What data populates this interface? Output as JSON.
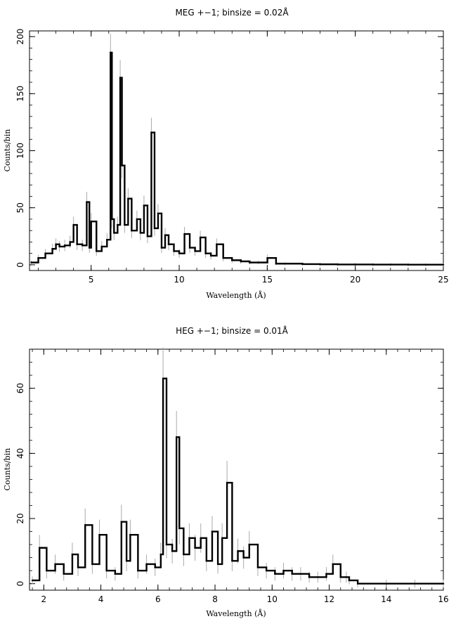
{
  "chart_data": [
    {
      "type": "line",
      "title": "MEG +−1; binsize = 0.02Å",
      "xlabel": "Wavelength (Å)",
      "ylabel": "Counts/bin",
      "xlim": [
        1.5,
        25
      ],
      "ylim": [
        -5,
        205
      ],
      "xticks": [
        5,
        10,
        15,
        20,
        25
      ],
      "yticks": [
        0,
        50,
        100,
        150,
        200
      ],
      "xtick_labels": [
        "5",
        "10",
        "15",
        "20",
        "25"
      ],
      "ytick_labels": [
        "0",
        "50",
        "100",
        "150",
        "200"
      ],
      "grid": false,
      "series": [
        {
          "x": [
            1.6,
            2.0,
            2.4,
            2.8,
            3.0,
            3.2,
            3.5,
            3.8,
            4.0,
            4.2,
            4.5,
            4.75,
            4.9,
            5.0,
            5.3,
            5.6,
            5.9,
            6.1,
            6.18,
            6.3,
            6.5,
            6.65,
            6.75,
            6.9,
            7.1,
            7.3,
            7.6,
            7.8,
            8.0,
            8.2,
            8.42,
            8.6,
            8.8,
            9.0,
            9.2,
            9.4,
            9.7,
            10.0,
            10.3,
            10.6,
            10.9,
            11.2,
            11.5,
            11.8,
            12.13,
            12.5,
            13.0,
            13.5,
            14.0,
            14.5,
            15.01,
            15.5,
            16.0,
            17.0,
            18.0,
            19.0,
            20.0,
            21.0,
            22.0,
            23.0,
            24.0,
            25.0
          ],
          "y": [
            2,
            6,
            10,
            14,
            18,
            16,
            17,
            20,
            35,
            18,
            17,
            55,
            15,
            38,
            12,
            16,
            22,
            186,
            40,
            28,
            35,
            164,
            87,
            35,
            58,
            30,
            40,
            28,
            52,
            25,
            116,
            32,
            45,
            15,
            26,
            18,
            12,
            10,
            27,
            15,
            12,
            24,
            10,
            8,
            18,
            6,
            4,
            3,
            2,
            2,
            6,
            1,
            1,
            0.6,
            0.4,
            0.3,
            0.3,
            0.2,
            0.2,
            0.1,
            0.1,
            0.1
          ]
        }
      ]
    },
    {
      "type": "line",
      "title": "HEG +−1; binsize = 0.01Å",
      "xlabel": "Wavelength (Å)",
      "ylabel": "Counts/bin",
      "xlim": [
        1.5,
        16
      ],
      "ylim": [
        -2,
        72
      ],
      "xticks": [
        2,
        4,
        6,
        8,
        10,
        12,
        14,
        16
      ],
      "yticks": [
        0,
        20,
        40,
        60
      ],
      "xtick_labels": [
        "2",
        "4",
        "6",
        "8",
        "10",
        "12",
        "14",
        "16"
      ],
      "ytick_labels": [
        "0",
        "20",
        "40",
        "60"
      ],
      "grid": false,
      "series": [
        {
          "x": [
            1.6,
            1.85,
            2.1,
            2.4,
            2.7,
            3.0,
            3.2,
            3.45,
            3.7,
            3.95,
            4.2,
            4.5,
            4.72,
            4.9,
            5.03,
            5.3,
            5.6,
            5.9,
            6.1,
            6.18,
            6.3,
            6.5,
            6.65,
            6.75,
            6.9,
            7.1,
            7.3,
            7.5,
            7.7,
            7.9,
            8.1,
            8.25,
            8.42,
            8.6,
            8.8,
            9.0,
            9.2,
            9.5,
            9.8,
            10.1,
            10.4,
            10.7,
            11.0,
            11.3,
            11.6,
            11.9,
            12.13,
            12.4,
            12.6,
            12.7,
            13.0,
            14.0,
            15.0,
            16.0
          ],
          "y": [
            1,
            11,
            4,
            6,
            3,
            9,
            5,
            18,
            6,
            15,
            4,
            3,
            19,
            7,
            15,
            4,
            6,
            5,
            9,
            63,
            12,
            10,
            45,
            17,
            9,
            14,
            11,
            14,
            7,
            16,
            6,
            14,
            31,
            7,
            10,
            8,
            12,
            5,
            4,
            3,
            4,
            3,
            3,
            2,
            2,
            3,
            6,
            2,
            2,
            1,
            0,
            0,
            0,
            0
          ]
        }
      ]
    }
  ]
}
